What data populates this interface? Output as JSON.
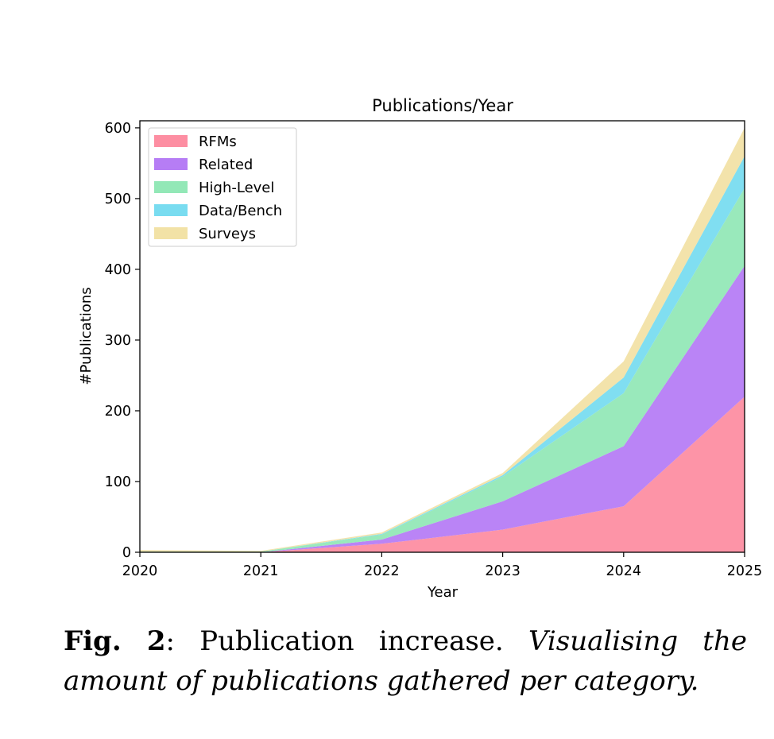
{
  "chart_data": {
    "type": "area",
    "title": "Publications/Year",
    "xlabel": "Year",
    "ylabel": "#Publications",
    "x": [
      2020,
      2021,
      2022,
      2023,
      2024,
      2025
    ],
    "xlim": [
      2020,
      2025
    ],
    "ylim": [
      0,
      610
    ],
    "xticks": [
      "2020",
      "2021",
      "2022",
      "2023",
      "2024",
      "2025"
    ],
    "yticks": [
      0,
      100,
      200,
      300,
      400,
      500,
      600
    ],
    "stacked": true,
    "grid": false,
    "legend_position": "top-left",
    "series": [
      {
        "name": "RFMs",
        "color": "#fd8ea2",
        "values": [
          0,
          0,
          12,
          32,
          65,
          220
        ]
      },
      {
        "name": "Related",
        "color": "#b67df5",
        "values": [
          0,
          0,
          6,
          40,
          85,
          185
        ]
      },
      {
        "name": "High-Level",
        "color": "#93e8b7",
        "values": [
          1,
          1,
          7,
          35,
          75,
          110
        ]
      },
      {
        "name": "Data/Bench",
        "color": "#79dcf0",
        "values": [
          0,
          0,
          1,
          2,
          22,
          45
        ]
      },
      {
        "name": "Surveys",
        "color": "#f2e2a6",
        "values": [
          2,
          1,
          2,
          3,
          23,
          40
        ]
      }
    ]
  },
  "caption": {
    "label": "Fig. 2",
    "text": ": Publication increase. ",
    "description": "Visualising the amount of publications gathered per category."
  }
}
